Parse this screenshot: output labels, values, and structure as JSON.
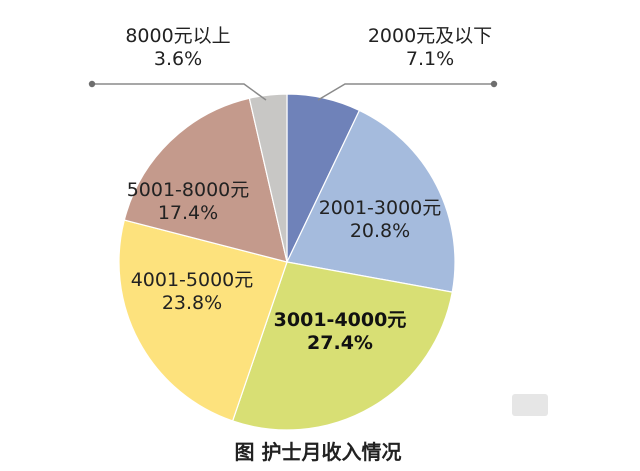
{
  "chart_data": {
    "type": "pie",
    "title": "图 护士月收入情况",
    "slices": [
      {
        "category": "2000元及以下",
        "value": 7.1,
        "value_label": "7.1%",
        "color": "#6f82b9"
      },
      {
        "category": "2001-3000元",
        "value": 20.8,
        "value_label": "20.8%",
        "color": "#a5bbdd"
      },
      {
        "category": "3001-4000元",
        "value": 27.4,
        "value_label": "27.4%",
        "color": "#d8df74"
      },
      {
        "category": "4001-5000元",
        "value": 23.8,
        "value_label": "23.8%",
        "color": "#fde27d"
      },
      {
        "category": "5001-8000元",
        "value": 17.4,
        "value_label": "17.4%",
        "color": "#c49a8c"
      },
      {
        "category": "8000元以上",
        "value": 3.6,
        "value_label": "3.6%",
        "color": "#c8c7c5"
      }
    ],
    "start_angle_deg": 0,
    "direction": "clockwise",
    "legend": "none"
  }
}
